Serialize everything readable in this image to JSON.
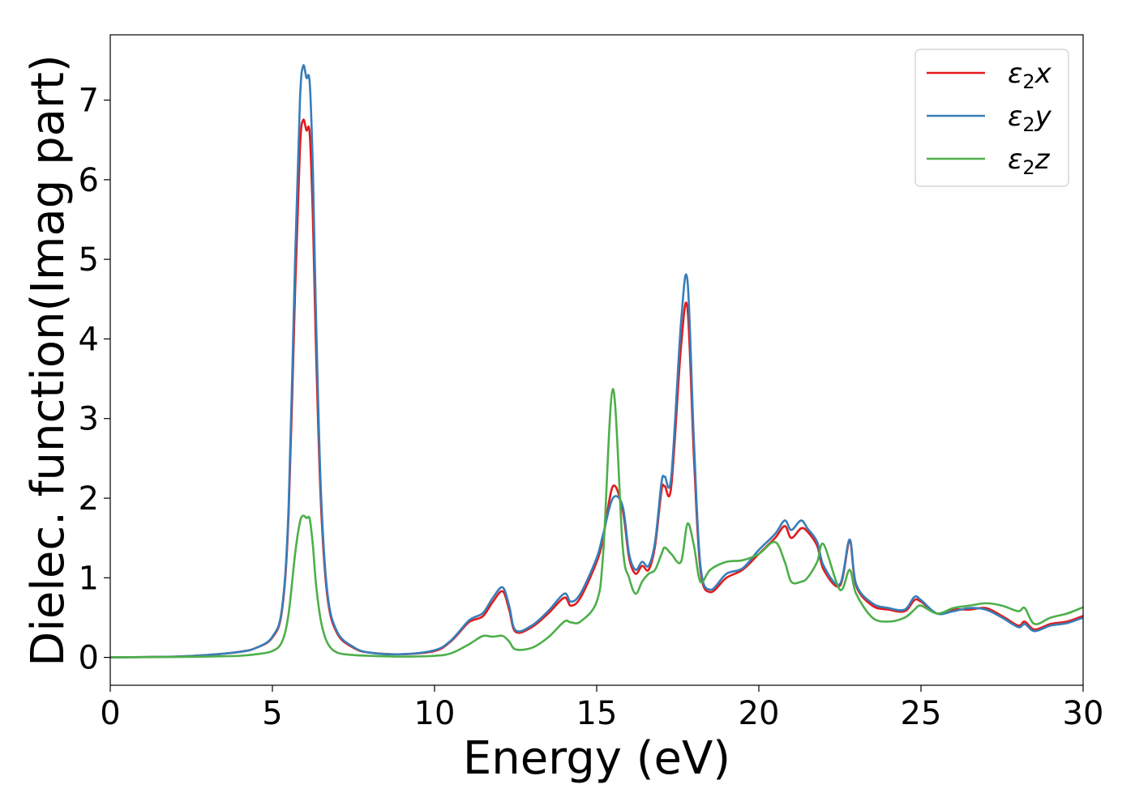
{
  "chart_data": {
    "type": "line",
    "xlabel": "Energy (eV)",
    "ylabel": "Dielec. function(Imag part)",
    "xlim": [
      0,
      30
    ],
    "ylim": [
      -0.35,
      7.82
    ],
    "xticks": [
      "0",
      "5",
      "10",
      "15",
      "20",
      "25",
      "30"
    ],
    "yticks": [
      "0",
      "1",
      "2",
      "3",
      "4",
      "5",
      "6",
      "7"
    ],
    "grid": false,
    "legend_position": "top-right",
    "series": [
      {
        "name": "ε2x",
        "legend": {
          "base": "ε",
          "sub": "2",
          "suffix": "x"
        },
        "color": "#e41a1c",
        "x": [
          0,
          2,
          3,
          4,
          4.5,
          5,
          5.3,
          5.5,
          5.7,
          5.85,
          5.95,
          6.05,
          6.15,
          6.25,
          6.35,
          6.5,
          6.7,
          7,
          7.5,
          8,
          9,
          10,
          10.5,
          11,
          11.2,
          11.5,
          11.8,
          12.1,
          12.3,
          12.5,
          13,
          13.5,
          14,
          14.2,
          14.5,
          15,
          15.2,
          15.5,
          15.8,
          16,
          16.2,
          16.4,
          16.6,
          16.8,
          17,
          17.1,
          17.3,
          17.6,
          17.8,
          18,
          18.2,
          18.5,
          19,
          19.5,
          20,
          20.5,
          20.8,
          21,
          21.3,
          21.5,
          21.8,
          22,
          22.5,
          22.8,
          23,
          23.5,
          24,
          24.5,
          24.8,
          25,
          25.5,
          26,
          26.5,
          27,
          27.5,
          28,
          28.2,
          28.5,
          29,
          29.5,
          30
        ],
        "y": [
          0,
          0.01,
          0.03,
          0.07,
          0.12,
          0.25,
          0.6,
          1.8,
          4.6,
          6.4,
          6.75,
          6.62,
          6.58,
          5.5,
          3.8,
          1.9,
          0.75,
          0.3,
          0.12,
          0.06,
          0.04,
          0.08,
          0.2,
          0.42,
          0.47,
          0.52,
          0.7,
          0.83,
          0.6,
          0.32,
          0.38,
          0.55,
          0.75,
          0.65,
          0.75,
          1.2,
          1.5,
          2.15,
          1.85,
          1.25,
          1.05,
          1.15,
          1.1,
          1.4,
          2.1,
          2.15,
          2.15,
          3.9,
          4.38,
          2.5,
          1.1,
          0.82,
          1.0,
          1.1,
          1.3,
          1.5,
          1.65,
          1.5,
          1.62,
          1.58,
          1.4,
          1.1,
          0.9,
          1.45,
          0.9,
          0.65,
          0.6,
          0.58,
          0.72,
          0.7,
          0.55,
          0.6,
          0.6,
          0.62,
          0.52,
          0.4,
          0.45,
          0.35,
          0.42,
          0.45,
          0.52
        ]
      },
      {
        "name": "ε2y",
        "legend": {
          "base": "ε",
          "sub": "2",
          "suffix": "y"
        },
        "color": "#377eb8",
        "x": [
          0,
          2,
          3,
          4,
          4.5,
          5,
          5.3,
          5.5,
          5.7,
          5.85,
          5.95,
          6.05,
          6.15,
          6.25,
          6.35,
          6.5,
          6.7,
          7,
          7.5,
          8,
          9,
          10,
          10.5,
          11,
          11.2,
          11.5,
          11.8,
          12.1,
          12.3,
          12.5,
          13,
          13.5,
          14,
          14.2,
          14.5,
          15,
          15.2,
          15.5,
          15.8,
          16,
          16.2,
          16.4,
          16.6,
          16.8,
          17,
          17.1,
          17.3,
          17.6,
          17.8,
          18,
          18.2,
          18.5,
          19,
          19.5,
          20,
          20.5,
          20.8,
          21,
          21.3,
          21.5,
          21.8,
          22,
          22.5,
          22.8,
          23,
          23.5,
          24,
          24.5,
          24.8,
          25,
          25.5,
          26,
          26.5,
          27,
          27.5,
          28,
          28.2,
          28.5,
          29,
          29.5,
          30
        ],
        "y": [
          0,
          0.01,
          0.03,
          0.07,
          0.12,
          0.26,
          0.63,
          1.9,
          5.0,
          7.0,
          7.43,
          7.28,
          7.22,
          6.1,
          4.2,
          2.05,
          0.8,
          0.32,
          0.13,
          0.06,
          0.04,
          0.09,
          0.21,
          0.44,
          0.5,
          0.56,
          0.75,
          0.88,
          0.65,
          0.34,
          0.4,
          0.58,
          0.8,
          0.7,
          0.8,
          1.25,
          1.55,
          2.0,
          1.9,
          1.3,
          1.1,
          1.2,
          1.15,
          1.45,
          2.2,
          2.27,
          2.27,
          4.2,
          4.73,
          2.7,
          1.15,
          0.85,
          1.05,
          1.12,
          1.35,
          1.55,
          1.72,
          1.6,
          1.72,
          1.62,
          1.45,
          1.15,
          0.92,
          1.48,
          0.92,
          0.68,
          0.62,
          0.6,
          0.76,
          0.72,
          0.55,
          0.58,
          0.62,
          0.6,
          0.5,
          0.38,
          0.42,
          0.33,
          0.4,
          0.43,
          0.5
        ]
      },
      {
        "name": "ε2z",
        "legend": {
          "base": "ε",
          "sub": "2",
          "suffix": "z"
        },
        "color": "#4daf4a",
        "x": [
          0,
          2,
          3,
          4,
          4.5,
          5,
          5.3,
          5.5,
          5.7,
          5.85,
          5.95,
          6.05,
          6.15,
          6.25,
          6.35,
          6.5,
          6.7,
          7,
          7.5,
          8,
          9,
          10,
          10.5,
          11,
          11.2,
          11.5,
          11.8,
          12.1,
          12.3,
          12.5,
          13,
          13.5,
          14,
          14.2,
          14.5,
          15,
          15.2,
          15.5,
          15.8,
          16,
          16.2,
          16.4,
          16.6,
          16.8,
          17,
          17.1,
          17.3,
          17.6,
          17.8,
          18,
          18.2,
          18.5,
          19,
          19.5,
          20,
          20.5,
          20.8,
          21,
          21.3,
          21.5,
          21.8,
          22,
          22.5,
          22.8,
          23,
          23.5,
          24,
          24.5,
          24.8,
          25,
          25.5,
          26,
          26.5,
          27,
          27.5,
          28,
          28.2,
          28.5,
          29,
          29.5,
          30
        ],
        "y": [
          0,
          0.005,
          0.01,
          0.02,
          0.04,
          0.08,
          0.2,
          0.55,
          1.3,
          1.7,
          1.78,
          1.75,
          1.74,
          1.4,
          0.9,
          0.45,
          0.18,
          0.06,
          0.03,
          0.02,
          0.01,
          0.02,
          0.05,
          0.15,
          0.2,
          0.27,
          0.26,
          0.27,
          0.2,
          0.1,
          0.12,
          0.25,
          0.45,
          0.44,
          0.45,
          0.7,
          1.3,
          3.37,
          1.4,
          1.0,
          0.8,
          0.95,
          1.05,
          1.1,
          1.3,
          1.38,
          1.3,
          1.2,
          1.68,
          1.4,
          0.95,
          1.1,
          1.2,
          1.22,
          1.3,
          1.45,
          1.2,
          0.95,
          0.95,
          1.0,
          1.2,
          1.42,
          0.85,
          1.1,
          0.8,
          0.5,
          0.45,
          0.5,
          0.6,
          0.65,
          0.55,
          0.62,
          0.65,
          0.68,
          0.65,
          0.58,
          0.62,
          0.42,
          0.5,
          0.55,
          0.63
        ]
      }
    ]
  }
}
